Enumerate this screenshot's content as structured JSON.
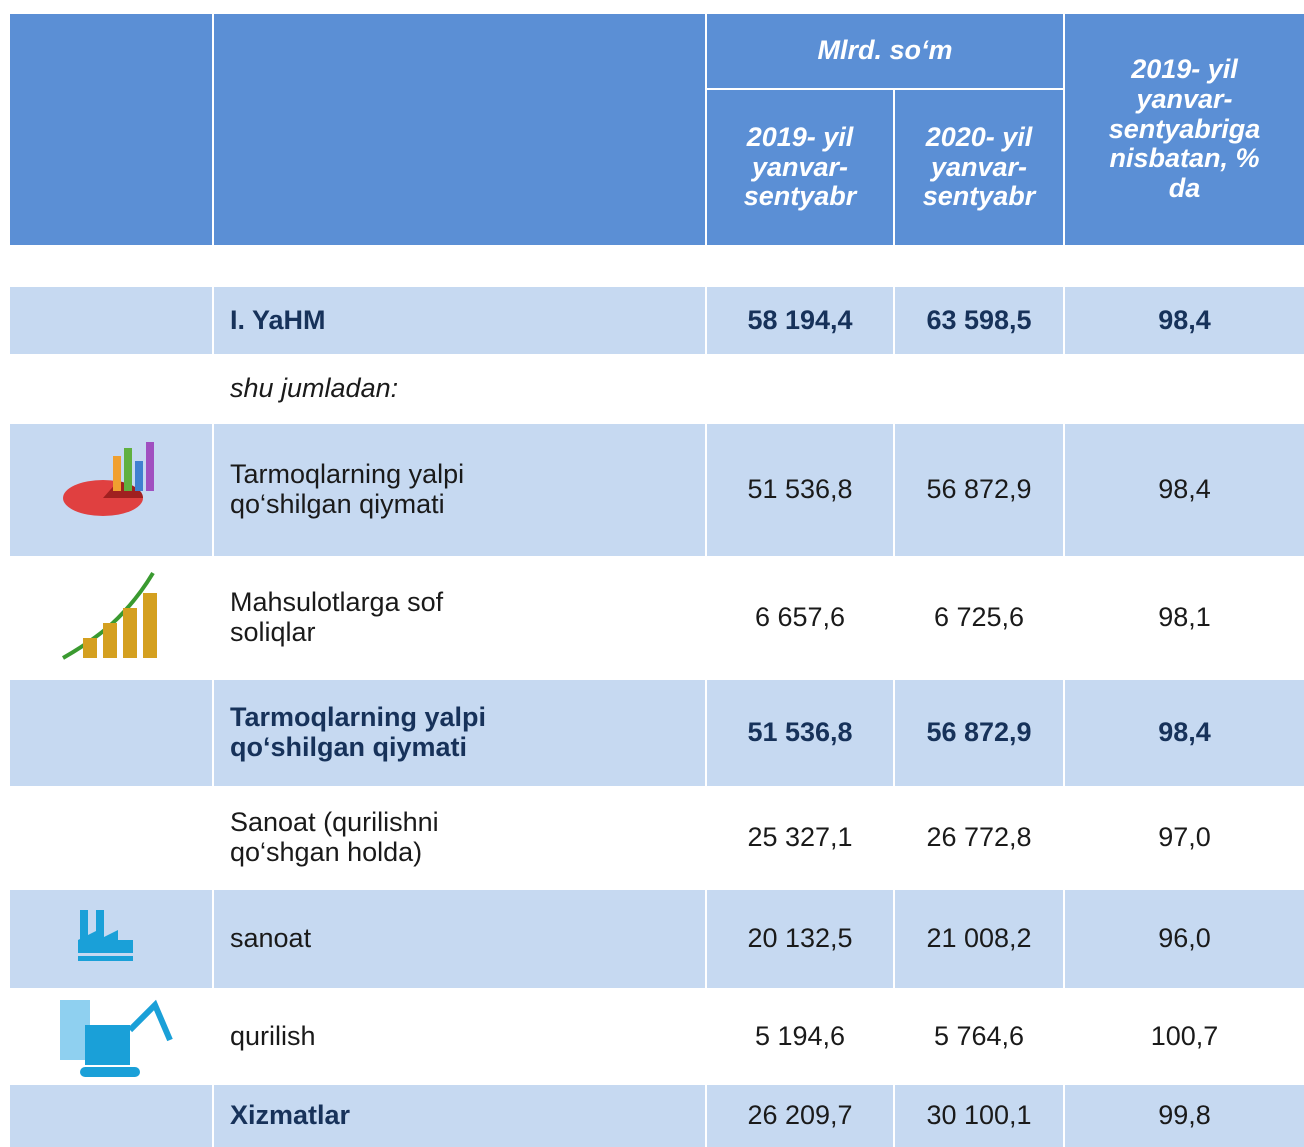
{
  "header": {
    "unit": "Mlrd. so‘m",
    "col_2019": "2019- yil yanvar-sentyabr",
    "col_2020": "2020- yil yanvar-sentyabr",
    "col_pct": "2019- yil yanvar-sentyabriga nisbatan, % da"
  },
  "rows": [
    {
      "label": "I. YaHM",
      "v2019": "58 194,4",
      "v2020": "63 598,5",
      "pct": "98,4"
    },
    {
      "label": "shu jumladan:"
    },
    {
      "label": "Tarmoqlarning yalpi qo‘shilgan qiymati",
      "v2019": "51 536,8",
      "v2020": "56 872,9",
      "pct": "98,4"
    },
    {
      "label": "Mahsulotlarga sof soliqlar",
      "v2019": "6 657,6",
      "v2020": "6 725,6",
      "pct": "98,1"
    },
    {
      "label": "Tarmoqlarning yalpi qo‘shilgan qiymati",
      "v2019": "51 536,8",
      "v2020": "56 872,9",
      "pct": "98,4"
    },
    {
      "label": "Sanoat (qurilishni qo‘shgan holda)",
      "v2019": "25 327,1",
      "v2020": "26 772,8",
      "pct": "97,0"
    },
    {
      "label": "sanoat",
      "v2019": "20 132,5",
      "v2020": "21 008,2",
      "pct": "96,0"
    },
    {
      "label": "qurilish",
      "v2019": "5 194,6",
      "v2020": "5 764,6",
      "pct": "100,7"
    },
    {
      "label": "Xizmatlar",
      "v2019": "26 209,7",
      "v2020": "30 100,1",
      "pct": "99,8"
    }
  ]
}
